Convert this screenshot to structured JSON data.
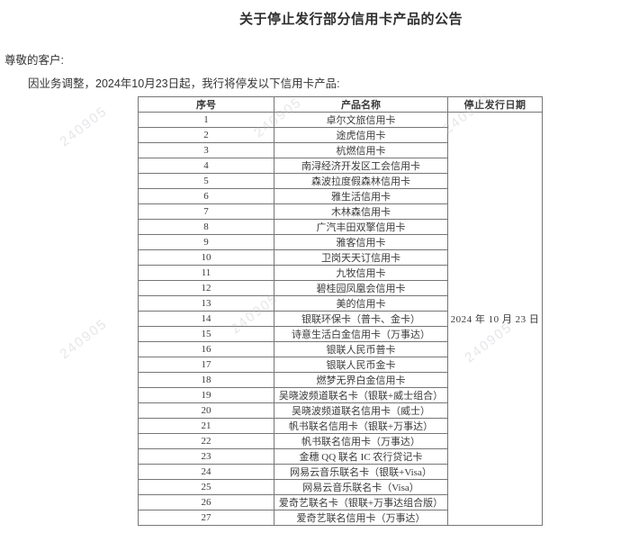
{
  "page": {
    "title": "关于停止发行部分信用卡产品的公告",
    "salutation": "尊敬的客户:",
    "intro": "因业务调整，2024年10月23日起，我行将停发以下信用卡产品:",
    "watermark": "240905"
  },
  "colors": {
    "text": "#333333",
    "table_border": "#767676",
    "watermark": "#b9b9c6",
    "background": "#ffffff"
  },
  "table": {
    "headers": [
      "序号",
      "产品名称",
      "停止发行日期"
    ],
    "stop_date": "2024 年 10 月 23 日",
    "rows": [
      {
        "no": "1",
        "name": "卓尔文旅信用卡"
      },
      {
        "no": "2",
        "name": "途虎信用卡"
      },
      {
        "no": "3",
        "name": "杭燃信用卡"
      },
      {
        "no": "4",
        "name": "南浔经济开发区工会信用卡"
      },
      {
        "no": "5",
        "name": "森波拉度假森林信用卡"
      },
      {
        "no": "6",
        "name": "雅生活信用卡"
      },
      {
        "no": "7",
        "name": "木林森信用卡"
      },
      {
        "no": "8",
        "name": "广汽丰田双擎信用卡"
      },
      {
        "no": "9",
        "name": "雅客信用卡"
      },
      {
        "no": "10",
        "name": "卫岗天天订信用卡"
      },
      {
        "no": "11",
        "name": "九牧信用卡"
      },
      {
        "no": "12",
        "name": "碧桂园凤凰会信用卡"
      },
      {
        "no": "13",
        "name": "美的信用卡"
      },
      {
        "no": "14",
        "name": "银联环保卡（普卡、金卡）"
      },
      {
        "no": "15",
        "name": "诗意生活白金信用卡（万事达）"
      },
      {
        "no": "16",
        "name": "银联人民币普卡"
      },
      {
        "no": "17",
        "name": "银联人民币金卡"
      },
      {
        "no": "18",
        "name": "燃梦无界白金信用卡"
      },
      {
        "no": "19",
        "name": "吴晓波频道联名卡（银联+威士组合）"
      },
      {
        "no": "20",
        "name": "吴晓波频道联名信用卡（威士）"
      },
      {
        "no": "21",
        "name": "帆书联名信用卡（银联+万事达）"
      },
      {
        "no": "22",
        "name": "帆书联名信用卡（万事达）"
      },
      {
        "no": "23",
        "name": "金穗 QQ 联名 IC 农行贷记卡"
      },
      {
        "no": "24",
        "name": "网易云音乐联名卡（银联+Visa）"
      },
      {
        "no": "25",
        "name": "网易云音乐联名卡（Visa）"
      },
      {
        "no": "26",
        "name": "爱奇艺联名卡（银联+万事达组合版）"
      },
      {
        "no": "27",
        "name": "爱奇艺联名信用卡（万事达）"
      }
    ]
  }
}
